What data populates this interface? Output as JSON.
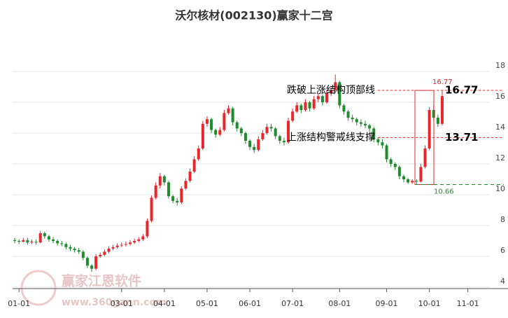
{
  "chart_data": {
    "type": "candlestick",
    "title": "沃尔核材(002130)赢家十二宫",
    "watermark": {
      "name": "赢家江恩软件",
      "url": "www.360gann.com"
    },
    "up_color": "#e8262c",
    "down_color": "#1e8c2c",
    "ylim": [
      4,
      18
    ],
    "yticks": [
      4,
      6,
      8,
      10,
      12,
      14,
      16,
      18
    ],
    "grid": true,
    "categories": [
      null,
      "01-01",
      null,
      null,
      null,
      null,
      null,
      null,
      null,
      null,
      null,
      null,
      null,
      null,
      null,
      null,
      null,
      null,
      null,
      null,
      null,
      null,
      null,
      null,
      null,
      "03-01",
      null,
      null,
      null,
      null,
      null,
      null,
      null,
      null,
      null,
      "04-01",
      null,
      null,
      null,
      null,
      null,
      null,
      null,
      null,
      null,
      "05-01",
      null,
      null,
      null,
      null,
      null,
      null,
      null,
      null,
      null,
      "06-01",
      null,
      null,
      null,
      null,
      null,
      null,
      null,
      null,
      null,
      "07-01",
      null,
      null,
      null,
      null,
      null,
      null,
      null,
      null,
      null,
      null,
      "08-01",
      null,
      null,
      null,
      null,
      null,
      null,
      null,
      null,
      null,
      null,
      "09-01",
      null,
      null,
      null,
      null,
      null,
      null,
      null,
      null,
      null,
      "10-01",
      null,
      null,
      null,
      null,
      null,
      null,
      null,
      null,
      "11-01",
      null,
      null,
      null
    ],
    "candles": [
      [
        7.05,
        7.2,
        6.85,
        7.0
      ],
      [
        7.0,
        7.1,
        6.8,
        6.95
      ],
      [
        6.95,
        7.2,
        6.9,
        7.05
      ],
      [
        7.05,
        7.2,
        6.75,
        6.9
      ],
      [
        6.9,
        7.1,
        6.8,
        6.95
      ],
      [
        6.95,
        7.1,
        6.75,
        6.9
      ],
      [
        6.9,
        7.65,
        6.85,
        7.5
      ],
      [
        7.5,
        7.6,
        7.15,
        7.3
      ],
      [
        7.3,
        7.4,
        6.95,
        7.1
      ],
      [
        7.1,
        7.25,
        6.85,
        7.0
      ],
      [
        7.0,
        7.1,
        6.7,
        6.85
      ],
      [
        6.85,
        7.0,
        6.65,
        6.8
      ],
      [
        6.8,
        6.9,
        6.45,
        6.6
      ],
      [
        6.6,
        6.75,
        6.35,
        6.5
      ],
      [
        6.5,
        6.6,
        6.25,
        6.4
      ],
      [
        6.4,
        6.55,
        6.15,
        6.3
      ],
      [
        6.3,
        6.4,
        5.75,
        5.9
      ],
      [
        5.9,
        6.0,
        5.25,
        5.4
      ],
      [
        5.4,
        5.5,
        5.0,
        5.2
      ],
      [
        5.2,
        6.15,
        5.1,
        6.0
      ],
      [
        6.0,
        6.25,
        5.9,
        6.1
      ],
      [
        6.1,
        6.45,
        6.0,
        6.3
      ],
      [
        6.3,
        6.65,
        6.2,
        6.5
      ],
      [
        6.5,
        6.75,
        6.4,
        6.6
      ],
      [
        6.6,
        6.85,
        6.5,
        6.7
      ],
      [
        6.75,
        6.9,
        6.6,
        6.75
      ],
      [
        6.75,
        6.95,
        6.65,
        6.8
      ],
      [
        6.8,
        7.05,
        6.7,
        6.9
      ],
      [
        6.9,
        7.15,
        6.8,
        7.0
      ],
      [
        7.0,
        7.25,
        6.9,
        7.1
      ],
      [
        7.1,
        7.45,
        7.0,
        7.3
      ],
      [
        7.3,
        8.45,
        7.2,
        8.3
      ],
      [
        8.3,
        9.95,
        8.2,
        9.8
      ],
      [
        9.8,
        10.8,
        9.7,
        10.6
      ],
      [
        10.6,
        11.4,
        10.4,
        11.2
      ],
      [
        11.2,
        11.3,
        10.6,
        10.8
      ],
      [
        10.8,
        10.9,
        9.75,
        9.9
      ],
      [
        9.9,
        10.0,
        9.45,
        9.6
      ],
      [
        9.6,
        9.8,
        9.3,
        9.5
      ],
      [
        9.5,
        10.55,
        9.4,
        10.4
      ],
      [
        10.4,
        11.05,
        10.3,
        10.9
      ],
      [
        10.9,
        11.7,
        10.8,
        11.5
      ],
      [
        11.5,
        12.5,
        11.4,
        12.3
      ],
      [
        12.3,
        13.2,
        12.2,
        13.0
      ],
      [
        13.0,
        14.8,
        12.9,
        14.6
      ],
      [
        14.6,
        15.1,
        14.4,
        14.9
      ],
      [
        14.9,
        15.0,
        14.0,
        14.2
      ],
      [
        14.2,
        14.3,
        13.7,
        13.9
      ],
      [
        13.9,
        14.4,
        13.8,
        14.2
      ],
      [
        14.2,
        15.5,
        14.1,
        15.3
      ],
      [
        15.3,
        15.8,
        15.2,
        15.6
      ],
      [
        15.6,
        15.7,
        14.5,
        14.7
      ],
      [
        14.7,
        14.8,
        14.1,
        14.3
      ],
      [
        14.3,
        14.4,
        13.8,
        14.0
      ],
      [
        14.0,
        14.1,
        13.3,
        13.5
      ],
      [
        13.5,
        13.6,
        12.9,
        13.1
      ],
      [
        13.1,
        13.3,
        12.7,
        12.9
      ],
      [
        12.9,
        13.8,
        12.8,
        13.6
      ],
      [
        13.6,
        14.2,
        13.5,
        14.0
      ],
      [
        14.0,
        14.6,
        13.9,
        14.4
      ],
      [
        14.4,
        14.6,
        14.1,
        14.3
      ],
      [
        14.3,
        14.4,
        13.6,
        13.8
      ],
      [
        13.8,
        13.9,
        13.3,
        13.5
      ],
      [
        13.5,
        13.7,
        13.2,
        13.4
      ],
      [
        13.4,
        15.0,
        13.3,
        14.8
      ],
      [
        14.8,
        15.6,
        14.7,
        15.4
      ],
      [
        15.4,
        16.0,
        15.3,
        15.8
      ],
      [
        15.8,
        15.9,
        15.3,
        15.5
      ],
      [
        15.5,
        16.2,
        15.4,
        16.0
      ],
      [
        16.0,
        16.1,
        15.4,
        15.6
      ],
      [
        15.6,
        16.4,
        15.5,
        16.2
      ],
      [
        16.2,
        16.6,
        16.0,
        16.4
      ],
      [
        16.4,
        16.5,
        15.8,
        16.0
      ],
      [
        16.0,
        16.8,
        15.9,
        16.6
      ],
      [
        16.6,
        17.0,
        16.4,
        16.8
      ],
      [
        16.8,
        17.8,
        16.6,
        17.3
      ],
      [
        17.3,
        17.4,
        15.6,
        15.8
      ],
      [
        15.8,
        15.9,
        15.2,
        15.4
      ],
      [
        15.4,
        15.5,
        14.8,
        15.0
      ],
      [
        15.0,
        15.2,
        14.7,
        14.9
      ],
      [
        14.9,
        15.0,
        14.5,
        14.7
      ],
      [
        14.7,
        14.9,
        14.4,
        14.6
      ],
      [
        14.6,
        14.8,
        14.3,
        14.5
      ],
      [
        14.5,
        14.6,
        14.1,
        14.3
      ],
      [
        14.3,
        14.4,
        13.4,
        13.6
      ],
      [
        13.6,
        13.7,
        13.2,
        13.4
      ],
      [
        13.4,
        13.6,
        13.0,
        13.2
      ],
      [
        13.2,
        13.3,
        12.1,
        12.3
      ],
      [
        12.3,
        12.4,
        11.8,
        12.0
      ],
      [
        12.0,
        12.1,
        11.6,
        11.8
      ],
      [
        11.8,
        11.9,
        11.0,
        11.2
      ],
      [
        11.2,
        11.3,
        10.8,
        11.0
      ],
      [
        11.0,
        11.1,
        10.7,
        10.8
      ],
      [
        10.8,
        11.0,
        10.7,
        10.9
      ],
      [
        10.9,
        11.0,
        10.66,
        10.85
      ],
      [
        10.85,
        12.0,
        10.8,
        11.8
      ],
      [
        11.8,
        13.2,
        11.7,
        13.0
      ],
      [
        13.0,
        15.7,
        12.9,
        15.5
      ],
      [
        15.5,
        15.8,
        14.8,
        15.0
      ],
      [
        15.0,
        15.2,
        14.4,
        14.6
      ],
      [
        14.6,
        16.77,
        14.5,
        16.4
      ],
      null,
      null,
      null,
      null,
      null,
      null,
      null,
      null,
      null
    ],
    "levels": [
      {
        "label": "跌破上涨结构顶部线",
        "value": 16.77,
        "color": "#e8262c"
      },
      {
        "label": "上涨结构警戒线支撑",
        "value": 13.71,
        "color": "#e8262c"
      }
    ],
    "low": {
      "value": 10.66,
      "color": "#1e8c2c"
    }
  }
}
